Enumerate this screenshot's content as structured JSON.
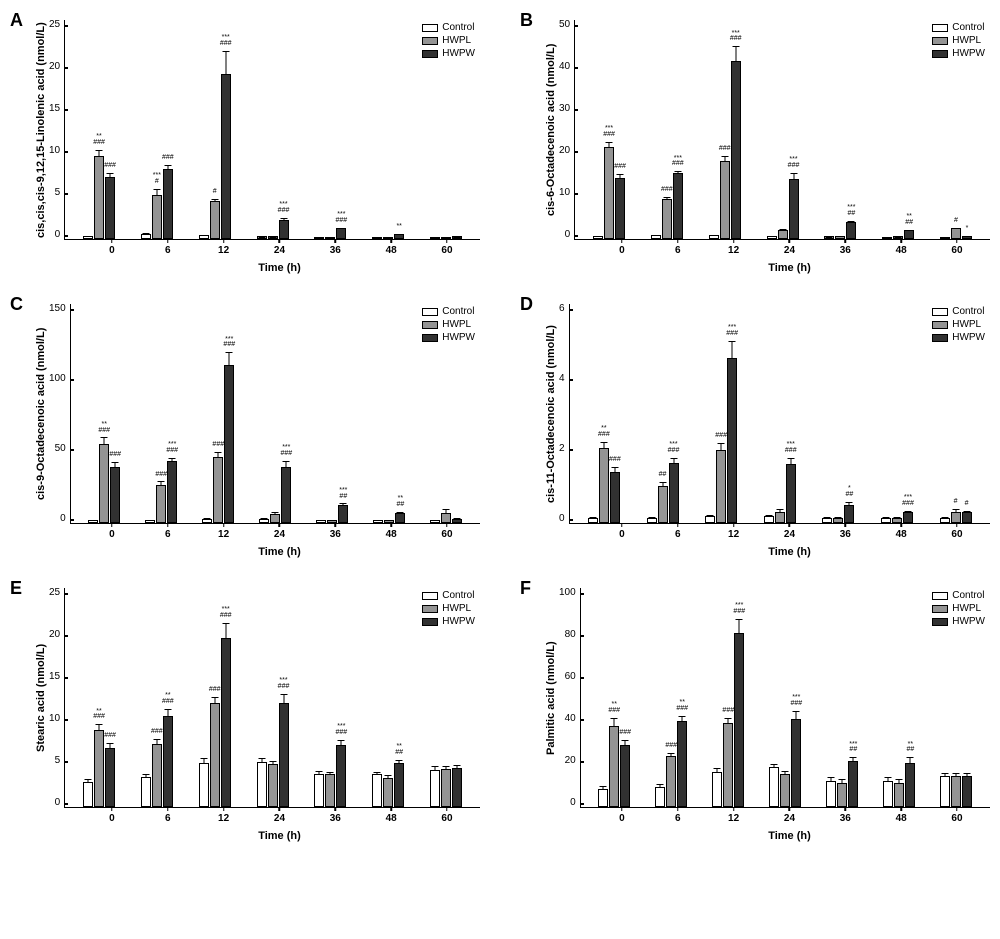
{
  "colors": {
    "control": "#ffffff",
    "hwpl": "#949494",
    "hwpw": "#313131",
    "border": "#000000",
    "background": "#ffffff"
  },
  "font": {
    "family": "Arial",
    "panel_label_size": 18,
    "axis_label_size": 11,
    "tick_size": 10,
    "sig_size": 7
  },
  "legend": {
    "items": [
      {
        "label": "Control",
        "color_key": "control"
      },
      {
        "label": "HWPL",
        "color_key": "hwpl"
      },
      {
        "label": "HWPW",
        "color_key": "hwpw"
      }
    ]
  },
  "x": {
    "label": "Time (h)",
    "categories": [
      "0",
      "6",
      "12",
      "24",
      "36",
      "48",
      "60"
    ]
  },
  "panels": [
    {
      "id": "A",
      "ylabel": "cis,cis,cis-9,12,15-Linolenic acid (nmol/L)",
      "ymax": 25,
      "ystep": 5,
      "data": [
        {
          "t": "0",
          "control": {
            "v": 0.3,
            "e": 0.2
          },
          "hwpl": {
            "v": 9.4,
            "e": 0.8,
            "sig": "**\n###"
          },
          "hwpw": {
            "v": 7.0,
            "e": 0.6,
            "sig": "###"
          }
        },
        {
          "t": "6",
          "control": {
            "v": 0.6,
            "e": 0.2
          },
          "hwpl": {
            "v": 5.0,
            "e": 0.8,
            "sig": "***\n#"
          },
          "hwpw": {
            "v": 8.0,
            "e": 0.5,
            "sig": "###"
          }
        },
        {
          "t": "12",
          "control": {
            "v": 0.4,
            "e": 0.2
          },
          "hwpl": {
            "v": 4.3,
            "e": 0.4,
            "sig": "#"
          },
          "hwpw": {
            "v": 18.7,
            "e": 2.8,
            "sig": "***\n###"
          }
        },
        {
          "t": "24",
          "control": {
            "v": 0.3,
            "e": 0.1
          },
          "hwpl": {
            "v": 0.3,
            "e": 0.1
          },
          "hwpw": {
            "v": 2.2,
            "e": 0.3,
            "sig": "***\n###"
          }
        },
        {
          "t": "36",
          "control": {
            "v": 0.2,
            "e": 0.1
          },
          "hwpl": {
            "v": 0.2,
            "e": 0.1
          },
          "hwpw": {
            "v": 1.2,
            "e": 0.2,
            "sig": "***\n###"
          }
        },
        {
          "t": "48",
          "control": {
            "v": 0.2,
            "e": 0.1
          },
          "hwpl": {
            "v": 0.2,
            "e": 0.1
          },
          "hwpw": {
            "v": 0.6,
            "e": 0.1,
            "sig": "**"
          }
        },
        {
          "t": "60",
          "control": {
            "v": 0.2,
            "e": 0.1
          },
          "hwpl": {
            "v": 0.2,
            "e": 0.1
          },
          "hwpw": {
            "v": 0.3,
            "e": 0.1
          }
        }
      ]
    },
    {
      "id": "B",
      "ylabel": "cis-6-Octadecenoic acid (nmol/L)",
      "ymax": 50,
      "ystep": 10,
      "data": [
        {
          "t": "0",
          "control": {
            "v": 0.7,
            "e": 0.3
          },
          "hwpl": {
            "v": 20.8,
            "e": 1.5,
            "sig": "***\n###"
          },
          "hwpw": {
            "v": 13.8,
            "e": 1.3,
            "sig": "###"
          }
        },
        {
          "t": "6",
          "control": {
            "v": 0.8,
            "e": 0.3
          },
          "hwpl": {
            "v": 9.0,
            "e": 0.8,
            "sig": "###"
          },
          "hwpw": {
            "v": 14.9,
            "e": 0.7,
            "sig": "***\n###"
          }
        },
        {
          "t": "12",
          "control": {
            "v": 0.8,
            "e": 0.3
          },
          "hwpl": {
            "v": 17.8,
            "e": 1.2,
            "sig": "###"
          },
          "hwpw": {
            "v": 40.5,
            "e": 3.5,
            "sig": "***\n###"
          }
        },
        {
          "t": "24",
          "control": {
            "v": 0.7,
            "e": 0.3
          },
          "hwpl": {
            "v": 2.0,
            "e": 0.4
          },
          "hwpw": {
            "v": 13.7,
            "e": 1.5,
            "sig": "***\n###"
          }
        },
        {
          "t": "36",
          "control": {
            "v": 0.6,
            "e": 0.2
          },
          "hwpl": {
            "v": 0.7,
            "e": 0.2
          },
          "hwpw": {
            "v": 3.8,
            "e": 0.5,
            "sig": "***\n##"
          }
        },
        {
          "t": "48",
          "control": {
            "v": 0.5,
            "e": 0.2
          },
          "hwpl": {
            "v": 0.6,
            "e": 0.2
          },
          "hwpw": {
            "v": 2.0,
            "e": 0.3,
            "sig": "**\n##"
          }
        },
        {
          "t": "60",
          "control": {
            "v": 0.5,
            "e": 0.2
          },
          "hwpl": {
            "v": 2.5,
            "e": 0.3,
            "sig": "#"
          },
          "hwpw": {
            "v": 0.7,
            "e": 0.2,
            "sig": "*"
          }
        }
      ]
    },
    {
      "id": "C",
      "ylabel": "cis-9-Octadecenoic acid (nmol/L)",
      "ymax": 150,
      "ystep": 50,
      "data": [
        {
          "t": "0",
          "control": {
            "v": 2,
            "e": 1
          },
          "hwpl": {
            "v": 54,
            "e": 5,
            "sig": "**\n###"
          },
          "hwpw": {
            "v": 38,
            "e": 4,
            "sig": "###"
          }
        },
        {
          "t": "6",
          "control": {
            "v": 2,
            "e": 1
          },
          "hwpl": {
            "v": 26,
            "e": 3,
            "sig": "###"
          },
          "hwpw": {
            "v": 42,
            "e": 3,
            "sig": "***\n###"
          }
        },
        {
          "t": "12",
          "control": {
            "v": 3,
            "e": 1
          },
          "hwpl": {
            "v": 45,
            "e": 4,
            "sig": "###"
          },
          "hwpw": {
            "v": 108,
            "e": 9,
            "sig": "***\n###"
          }
        },
        {
          "t": "24",
          "control": {
            "v": 3,
            "e": 1
          },
          "hwpl": {
            "v": 6,
            "e": 2
          },
          "hwpw": {
            "v": 38,
            "e": 5,
            "sig": "***\n###"
          }
        },
        {
          "t": "36",
          "control": {
            "v": 2,
            "e": 1
          },
          "hwpl": {
            "v": 2,
            "e": 1
          },
          "hwpw": {
            "v": 12,
            "e": 2,
            "sig": "***\n##"
          }
        },
        {
          "t": "48",
          "control": {
            "v": 2,
            "e": 1
          },
          "hwpl": {
            "v": 2,
            "e": 1
          },
          "hwpw": {
            "v": 7,
            "e": 1,
            "sig": "**\n##"
          }
        },
        {
          "t": "60",
          "control": {
            "v": 2,
            "e": 1
          },
          "hwpl": {
            "v": 7,
            "e": 3
          },
          "hwpw": {
            "v": 3,
            "e": 1
          }
        }
      ]
    },
    {
      "id": "D",
      "ylabel": "cis-11-Octadecenoic acid (nmol/L)",
      "ymax": 6,
      "ystep": 2,
      "data": [
        {
          "t": "0",
          "control": {
            "v": 0.15,
            "e": 0.05
          },
          "hwpl": {
            "v": 2.05,
            "e": 0.2,
            "sig": "**\n###"
          },
          "hwpw": {
            "v": 1.4,
            "e": 0.15,
            "sig": "###"
          }
        },
        {
          "t": "6",
          "control": {
            "v": 0.15,
            "e": 0.05
          },
          "hwpl": {
            "v": 1.0,
            "e": 0.15,
            "sig": "##"
          },
          "hwpw": {
            "v": 1.65,
            "e": 0.15,
            "sig": "***\n###"
          }
        },
        {
          "t": "12",
          "control": {
            "v": 0.2,
            "e": 0.05
          },
          "hwpl": {
            "v": 2.0,
            "e": 0.2,
            "sig": "###"
          },
          "hwpw": {
            "v": 4.5,
            "e": 0.5,
            "sig": "***\n###"
          }
        },
        {
          "t": "24",
          "control": {
            "v": 0.2,
            "e": 0.05
          },
          "hwpl": {
            "v": 0.3,
            "e": 0.1
          },
          "hwpw": {
            "v": 1.6,
            "e": 0.2,
            "sig": "***\n###"
          }
        },
        {
          "t": "36",
          "control": {
            "v": 0.15,
            "e": 0.05
          },
          "hwpl": {
            "v": 0.15,
            "e": 0.05
          },
          "hwpw": {
            "v": 0.5,
            "e": 0.1,
            "sig": "*\n##"
          }
        },
        {
          "t": "48",
          "control": {
            "v": 0.15,
            "e": 0.05
          },
          "hwpl": {
            "v": 0.15,
            "e": 0.05
          },
          "hwpw": {
            "v": 0.3,
            "e": 0.05,
            "sig": "***\n###"
          }
        },
        {
          "t": "60",
          "control": {
            "v": 0.15,
            "e": 0.05
          },
          "hwpl": {
            "v": 0.3,
            "e": 0.1,
            "sig": "#"
          },
          "hwpw": {
            "v": 0.3,
            "e": 0.05,
            "sig": "#"
          }
        }
      ]
    },
    {
      "id": "E",
      "ylabel": "Stearic acid (nmol/L)",
      "ymax": 25,
      "ystep": 5,
      "data": [
        {
          "t": "0",
          "control": {
            "v": 2.8,
            "e": 0.5
          },
          "hwpl": {
            "v": 8.8,
            "e": 0.7,
            "sig": "**\n###"
          },
          "hwpw": {
            "v": 6.7,
            "e": 0.7,
            "sig": "###"
          }
        },
        {
          "t": "6",
          "control": {
            "v": 3.4,
            "e": 0.5
          },
          "hwpl": {
            "v": 7.2,
            "e": 0.6,
            "sig": "###"
          },
          "hwpw": {
            "v": 10.3,
            "e": 1.0,
            "sig": "**\n###"
          }
        },
        {
          "t": "12",
          "control": {
            "v": 5.0,
            "e": 0.7
          },
          "hwpl": {
            "v": 11.8,
            "e": 0.8,
            "sig": "###"
          },
          "hwpw": {
            "v": 19.2,
            "e": 1.8,
            "sig": "***\n###"
          }
        },
        {
          "t": "24",
          "control": {
            "v": 5.1,
            "e": 0.6
          },
          "hwpl": {
            "v": 4.9,
            "e": 0.5
          },
          "hwpw": {
            "v": 11.8,
            "e": 1.2,
            "sig": "***\n###"
          }
        },
        {
          "t": "36",
          "control": {
            "v": 3.8,
            "e": 0.4
          },
          "hwpl": {
            "v": 3.7,
            "e": 0.4
          },
          "hwpw": {
            "v": 7.0,
            "e": 0.7,
            "sig": "***\n###"
          }
        },
        {
          "t": "48",
          "control": {
            "v": 3.7,
            "e": 0.4
          },
          "hwpl": {
            "v": 3.3,
            "e": 0.4
          },
          "hwpw": {
            "v": 5.0,
            "e": 0.5,
            "sig": "**\n##"
          }
        },
        {
          "t": "60",
          "control": {
            "v": 4.2,
            "e": 0.6
          },
          "hwpl": {
            "v": 4.3,
            "e": 0.5
          },
          "hwpw": {
            "v": 4.4,
            "e": 0.5
          }
        }
      ]
    },
    {
      "id": "F",
      "ylabel": "Palmitic acid (nmol/L)",
      "ymax": 100,
      "ystep": 20,
      "data": [
        {
          "t": "0",
          "control": {
            "v": 8,
            "e": 2
          },
          "hwpl": {
            "v": 37,
            "e": 4,
            "sig": "**\n###"
          },
          "hwpw": {
            "v": 28,
            "e": 3,
            "sig": "###"
          }
        },
        {
          "t": "6",
          "control": {
            "v": 9,
            "e": 2
          },
          "hwpl": {
            "v": 23,
            "e": 2,
            "sig": "###"
          },
          "hwpw": {
            "v": 39,
            "e": 3,
            "sig": "**\n###"
          }
        },
        {
          "t": "12",
          "control": {
            "v": 16,
            "e": 2
          },
          "hwpl": {
            "v": 38,
            "e": 3,
            "sig": "###"
          },
          "hwpw": {
            "v": 79,
            "e": 7,
            "sig": "***\n###"
          }
        },
        {
          "t": "24",
          "control": {
            "v": 18,
            "e": 2
          },
          "hwpl": {
            "v": 15,
            "e": 2
          },
          "hwpw": {
            "v": 40,
            "e": 4,
            "sig": "***\n###"
          }
        },
        {
          "t": "36",
          "control": {
            "v": 12,
            "e": 2
          },
          "hwpl": {
            "v": 11,
            "e": 2
          },
          "hwpw": {
            "v": 21,
            "e": 2,
            "sig": "***\n##"
          }
        },
        {
          "t": "48",
          "control": {
            "v": 12,
            "e": 2
          },
          "hwpl": {
            "v": 11,
            "e": 2
          },
          "hwpw": {
            "v": 20,
            "e": 3,
            "sig": "**\n##"
          }
        },
        {
          "t": "60",
          "control": {
            "v": 14,
            "e": 2
          },
          "hwpl": {
            "v": 14,
            "e": 2
          },
          "hwpw": {
            "v": 14,
            "e": 2
          }
        }
      ]
    }
  ]
}
